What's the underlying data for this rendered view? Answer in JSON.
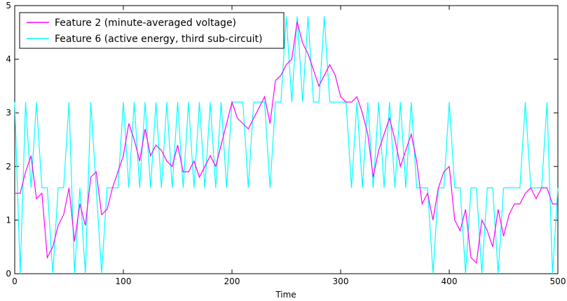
{
  "chart_data": {
    "type": "line",
    "xlabel": "Time",
    "ylabel": "",
    "xlim": [
      0,
      500
    ],
    "ylim": [
      0,
      5
    ],
    "xticks": [
      0,
      100,
      200,
      300,
      400,
      500
    ],
    "yticks": [
      0,
      1,
      2,
      3,
      4,
      5
    ],
    "grid": false,
    "legend_position": "top-left",
    "series": [
      {
        "name": "Feature 2 (minute-averaged voltage)",
        "color": "#ff00ff",
        "x": [
          0,
          5,
          10,
          15,
          20,
          25,
          30,
          35,
          40,
          45,
          50,
          55,
          60,
          65,
          70,
          75,
          80,
          85,
          90,
          95,
          100,
          105,
          110,
          115,
          120,
          125,
          130,
          135,
          140,
          145,
          150,
          155,
          160,
          165,
          170,
          175,
          180,
          185,
          190,
          195,
          200,
          205,
          210,
          215,
          220,
          225,
          230,
          235,
          240,
          245,
          250,
          255,
          260,
          265,
          270,
          275,
          280,
          285,
          290,
          295,
          300,
          305,
          310,
          315,
          320,
          325,
          330,
          335,
          340,
          345,
          350,
          355,
          360,
          365,
          370,
          375,
          380,
          385,
          390,
          395,
          400,
          405,
          410,
          415,
          420,
          425,
          430,
          435,
          440,
          445,
          450,
          455,
          460,
          465,
          470,
          475,
          480,
          485,
          490,
          495,
          500
        ],
        "values": [
          1.5,
          1.5,
          1.9,
          2.2,
          1.4,
          1.5,
          0.3,
          0.5,
          0.9,
          1.1,
          1.6,
          0.6,
          1.3,
          0.9,
          1.8,
          1.9,
          1.1,
          1.2,
          1.6,
          1.9,
          2.2,
          2.8,
          2.5,
          2.1,
          2.7,
          2.2,
          2.4,
          2.3,
          2.1,
          2.0,
          2.4,
          1.9,
          1.9,
          2.1,
          1.8,
          2.0,
          2.2,
          2.0,
          2.4,
          2.8,
          3.2,
          2.9,
          2.8,
          2.7,
          2.9,
          3.1,
          3.3,
          2.8,
          3.6,
          3.7,
          3.9,
          4.0,
          4.7,
          4.3,
          4.1,
          3.8,
          3.5,
          3.7,
          3.9,
          3.7,
          3.3,
          3.2,
          3.2,
          3.3,
          3.0,
          2.6,
          1.8,
          2.3,
          2.6,
          2.9,
          2.5,
          2.0,
          2.3,
          2.6,
          2.1,
          1.3,
          1.5,
          1.0,
          1.6,
          1.9,
          2.0,
          1.0,
          0.8,
          1.2,
          0.3,
          0.2,
          1.0,
          0.8,
          0.5,
          1.2,
          0.7,
          1.1,
          1.3,
          1.3,
          1.5,
          1.6,
          1.4,
          1.6,
          1.6,
          1.3,
          1.3
        ]
      },
      {
        "name": "Feature 6 (active energy, third sub-circuit)",
        "color": "#00ffff",
        "x": [
          0,
          5,
          10,
          15,
          20,
          25,
          30,
          35,
          40,
          45,
          50,
          55,
          60,
          65,
          70,
          75,
          80,
          85,
          90,
          95,
          100,
          105,
          110,
          115,
          120,
          125,
          130,
          135,
          140,
          145,
          150,
          155,
          160,
          165,
          170,
          175,
          180,
          185,
          190,
          195,
          200,
          205,
          210,
          215,
          220,
          225,
          230,
          235,
          240,
          245,
          250,
          255,
          260,
          265,
          270,
          275,
          280,
          285,
          290,
          295,
          300,
          305,
          310,
          315,
          320,
          325,
          330,
          335,
          340,
          345,
          350,
          355,
          360,
          365,
          370,
          375,
          380,
          385,
          390,
          395,
          400,
          405,
          410,
          415,
          420,
          425,
          430,
          435,
          440,
          445,
          450,
          455,
          460,
          465,
          470,
          475,
          480,
          485,
          490,
          495,
          500
        ],
        "values": [
          3.2,
          0,
          3.2,
          1.6,
          3.2,
          1.6,
          1.6,
          0,
          1.6,
          1.6,
          3.2,
          0,
          1.6,
          0,
          3.2,
          1.6,
          0,
          1.6,
          1.6,
          1.6,
          3.2,
          1.6,
          3.2,
          1.6,
          3.2,
          1.6,
          3.2,
          1.6,
          3.2,
          1.6,
          3.2,
          1.6,
          3.2,
          1.6,
          3.2,
          1.6,
          3.2,
          1.6,
          3.2,
          1.6,
          3.2,
          3.2,
          3.2,
          1.6,
          3.2,
          3.2,
          3.2,
          1.6,
          3.2,
          3.2,
          4.8,
          3.2,
          4.8,
          3.2,
          4.8,
          3.2,
          3.2,
          4.8,
          3.2,
          3.2,
          3.2,
          3.2,
          1.6,
          3.2,
          1.6,
          3.2,
          1.6,
          3.2,
          1.6,
          3.2,
          1.6,
          3.2,
          1.6,
          3.2,
          1.6,
          1.6,
          1.6,
          0,
          1.6,
          1.6,
          3.2,
          1.6,
          1.6,
          0,
          1.6,
          1.6,
          0,
          1.6,
          1.6,
          0,
          1.6,
          1.6,
          1.6,
          1.6,
          3.2,
          1.6,
          1.6,
          1.6,
          3.2,
          0,
          1.6
        ]
      }
    ]
  },
  "legend": {
    "items": [
      {
        "label": "Feature 2 (minute-averaged voltage)",
        "color": "#ff00ff"
      },
      {
        "label": "Feature 6 (active energy, third sub-circuit)",
        "color": "#00ffff"
      }
    ]
  }
}
